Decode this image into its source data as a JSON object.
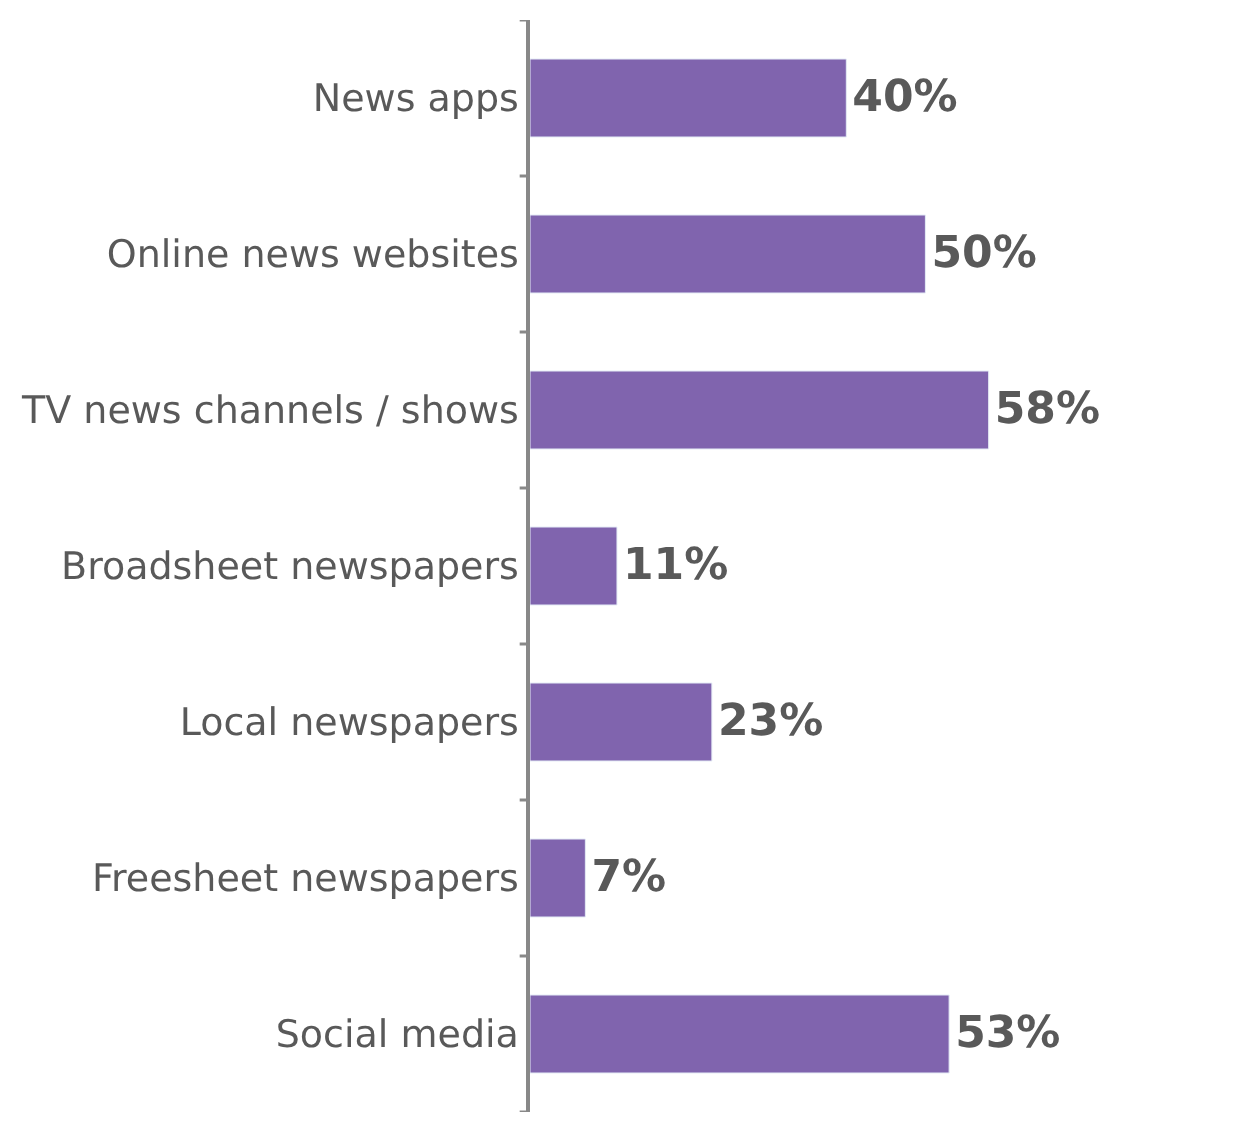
{
  "chart_data": {
    "type": "bar",
    "orientation": "horizontal",
    "categories": [
      "News apps",
      "Online news websites",
      "TV news channels / shows",
      "Broadsheet newspapers",
      "Local newspapers",
      "Freesheet newspapers",
      "Social media"
    ],
    "values": [
      40,
      50,
      58,
      11,
      23,
      7,
      53
    ],
    "value_labels": [
      "40%",
      "50%",
      "58%",
      "11%",
      "23%",
      "7%",
      "53%"
    ],
    "color": "#8064ae",
    "tick_labels": "y"
  }
}
